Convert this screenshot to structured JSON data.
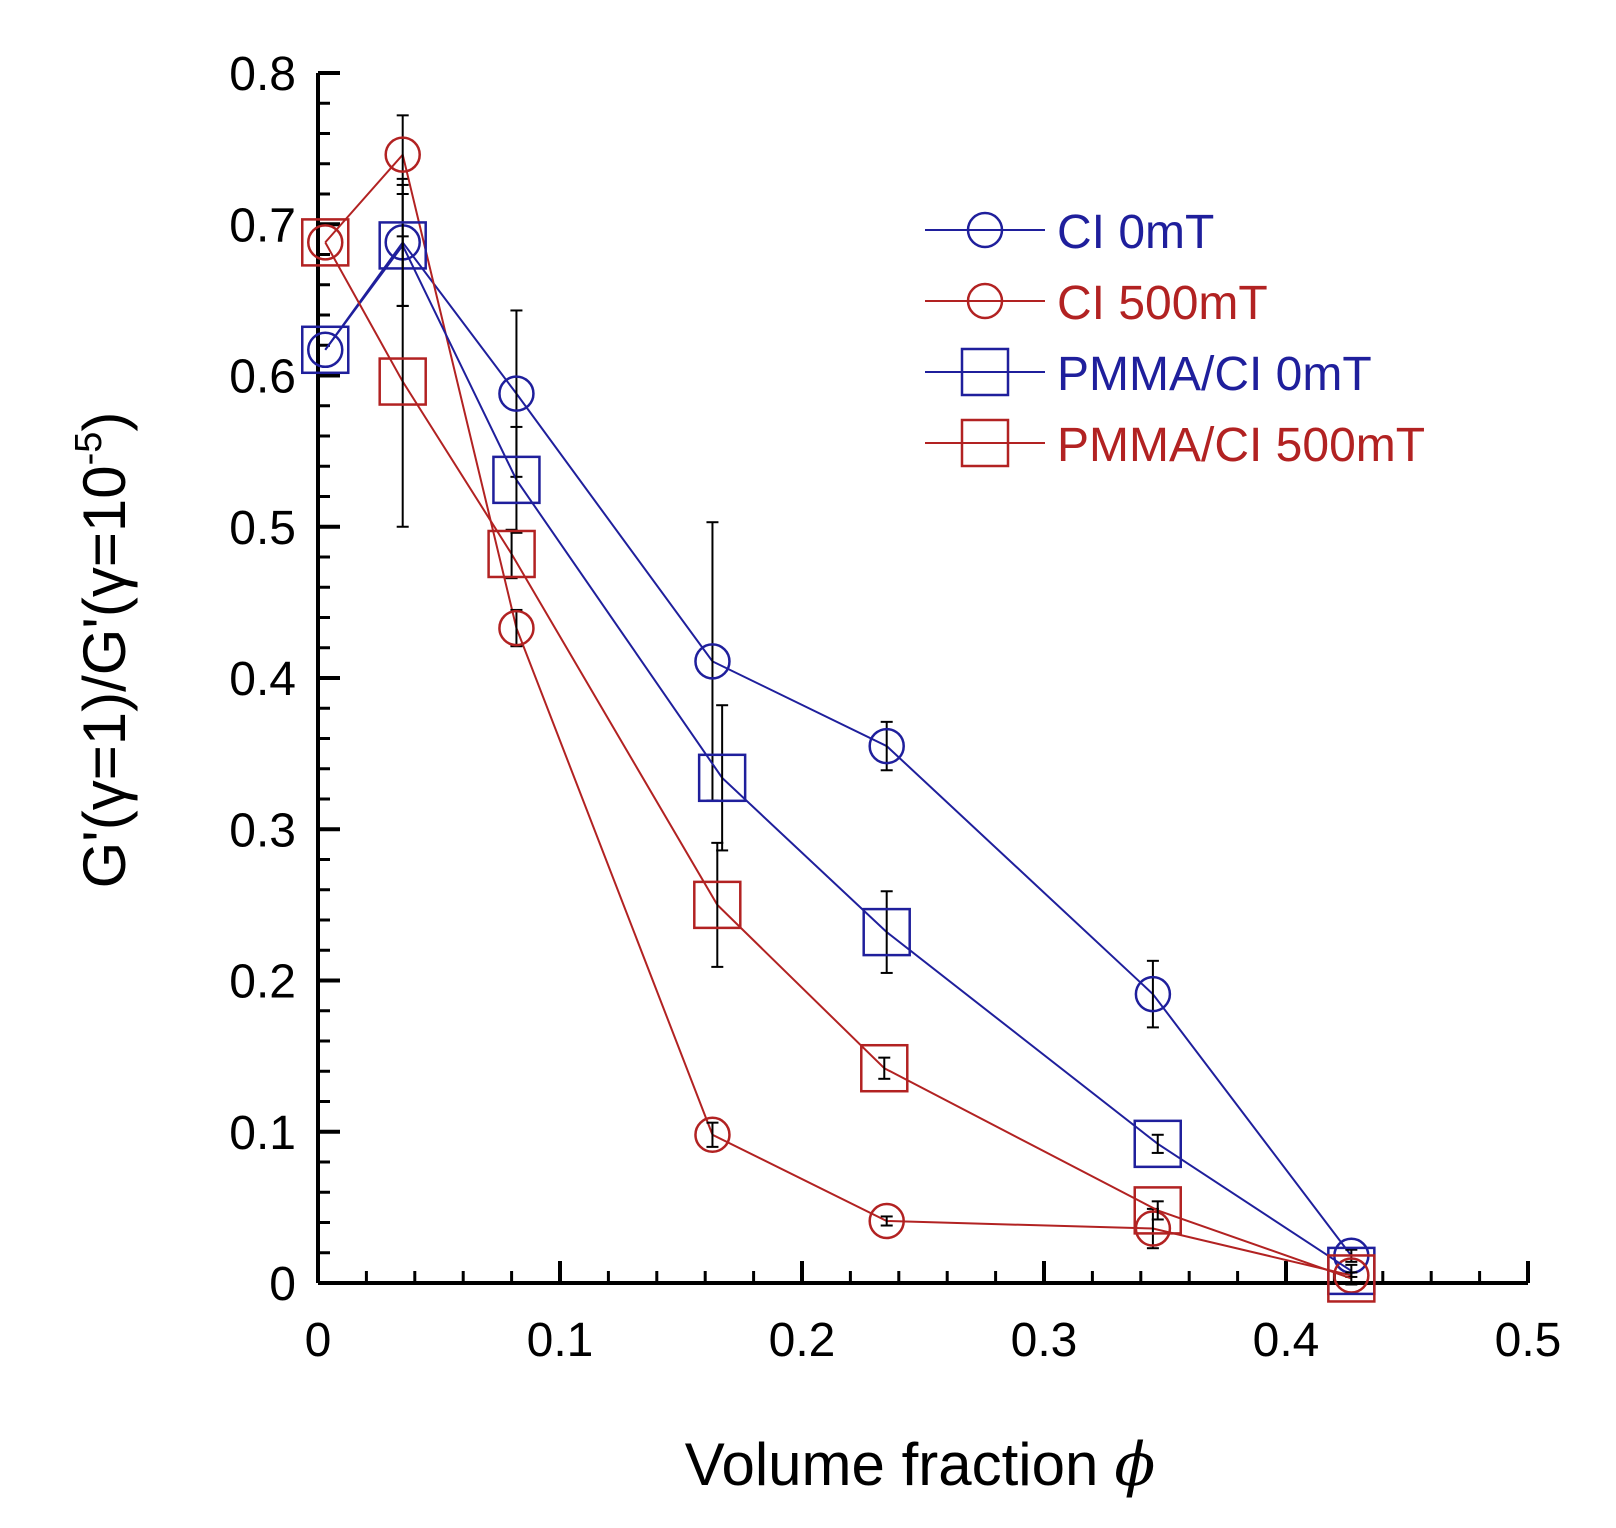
{
  "chart_data": {
    "type": "line",
    "title": "",
    "xlabel": "Volume fraction",
    "xlabel_symbol": "ϕ",
    "ylabel": "G'(γ=1)/G'(γ=10",
    "ylabel_exponent": "-5",
    "ylabel_close": ")",
    "xlim": [
      0,
      0.5
    ],
    "ylim": [
      0,
      0.8
    ],
    "x_ticks": [
      0,
      0.1,
      0.2,
      0.3,
      0.4,
      0.5
    ],
    "x_tick_labels": [
      "0",
      "0.1",
      "0.2",
      "0.3",
      "0.4",
      "0.5"
    ],
    "y_ticks": [
      0,
      0.1,
      0.2,
      0.3,
      0.4,
      0.5,
      0.6,
      0.7,
      0.8
    ],
    "y_tick_labels": [
      "0",
      "0.1",
      "0.2",
      "0.3",
      "0.4",
      "0.5",
      "0.6",
      "0.7",
      "0.8"
    ],
    "grid": false,
    "legend_position": "top-right",
    "series": [
      {
        "name": "CI 0mT",
        "color": "#1f1f9c",
        "marker": "circle",
        "x": [
          0.003,
          0.035,
          0.082,
          0.163,
          0.235,
          0.345,
          0.427
        ],
        "y": [
          0.617,
          0.688,
          0.588,
          0.411,
          0.355,
          0.191,
          0.018
        ],
        "err": [
          0.0,
          0.042,
          0.055,
          0.092,
          0.016,
          0.022,
          0.004
        ]
      },
      {
        "name": "CI 500mT",
        "color": "#b22222",
        "marker": "circle",
        "x": [
          0.003,
          0.035,
          0.082,
          0.163,
          0.235,
          0.345,
          0.427
        ],
        "y": [
          0.688,
          0.746,
          0.433,
          0.098,
          0.041,
          0.036,
          0.005
        ],
        "err": [
          0.0,
          0.026,
          0.012,
          0.008,
          0.003,
          0.013,
          0.0
        ]
      },
      {
        "name": "PMMA/CI 0mT",
        "color": "#1f1f9c",
        "marker": "square",
        "x": [
          0.003,
          0.035,
          0.082,
          0.167,
          0.235,
          0.347,
          0.427
        ],
        "y": [
          0.617,
          0.686,
          0.531,
          0.334,
          0.232,
          0.092,
          0.008
        ],
        "err": [
          0.0,
          0.04,
          0.035,
          0.048,
          0.027,
          0.006,
          0.004
        ]
      },
      {
        "name": "PMMA/CI 500mT",
        "color": "#b22222",
        "marker": "square",
        "x": [
          0.003,
          0.035,
          0.08,
          0.165,
          0.234,
          0.347,
          0.427
        ],
        "y": [
          0.688,
          0.596,
          0.482,
          0.25,
          0.142,
          0.048,
          0.003
        ],
        "err": [
          0.0,
          0.096,
          0.016,
          0.041,
          0.007,
          0.006,
          0.004
        ]
      }
    ]
  }
}
